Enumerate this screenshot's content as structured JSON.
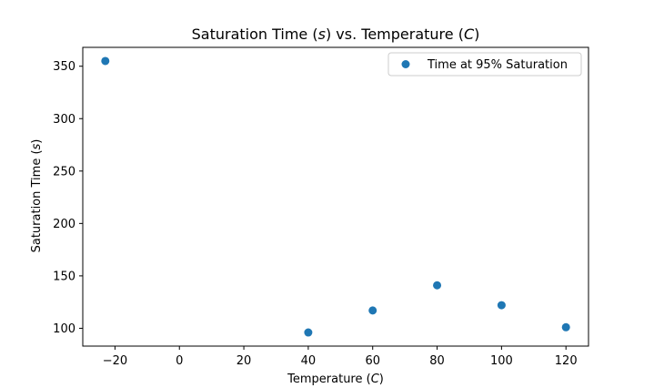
{
  "chart_data": {
    "type": "scatter",
    "title": {
      "prefix": "Saturation Time (",
      "var1": "s",
      "middle": ") vs. Temperature (",
      "var2": "C",
      "suffix": ")"
    },
    "xlabel": {
      "prefix": "Temperature (",
      "var": "C",
      "suffix": ")"
    },
    "ylabel": {
      "prefix": "Saturation Time (",
      "var": "s",
      "suffix": ")"
    },
    "xlim": [
      -30,
      127
    ],
    "ylim": [
      83,
      368
    ],
    "xticks": [
      -20,
      0,
      20,
      40,
      60,
      80,
      100,
      120
    ],
    "yticks": [
      100,
      150,
      200,
      250,
      300,
      350
    ],
    "grid": false,
    "legend_position": "top-right",
    "series": [
      {
        "name": "Time at 95% Saturation",
        "color": "#1f77b4",
        "marker": "circle",
        "points": [
          {
            "x": -23,
            "y": 355
          },
          {
            "x": 40,
            "y": 96
          },
          {
            "x": 60,
            "y": 117
          },
          {
            "x": 80,
            "y": 141
          },
          {
            "x": 100,
            "y": 122
          },
          {
            "x": 120,
            "y": 101
          }
        ]
      }
    ]
  }
}
